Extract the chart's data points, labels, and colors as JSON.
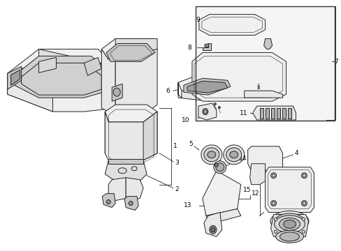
{
  "bg_color": "#ffffff",
  "lc": "#222222",
  "figsize": [
    4.89,
    3.6
  ],
  "dpi": 100,
  "lw_main": 0.7,
  "lw_thin": 0.4,
  "label_fs": 6.5
}
